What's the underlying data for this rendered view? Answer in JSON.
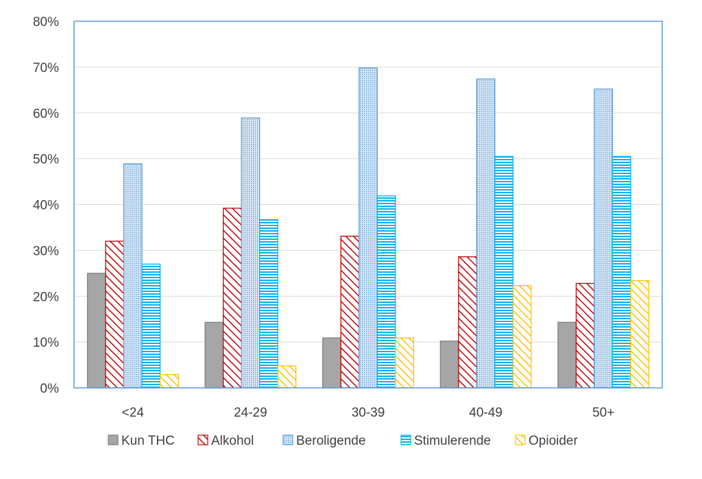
{
  "chart_data": {
    "type": "bar",
    "categories": [
      "<24",
      "24-29",
      "30-39",
      "40-49",
      "50+"
    ],
    "series": [
      {
        "name": "Kun THC",
        "values": [
          25,
          14.3,
          10.9,
          10.2,
          14.3
        ],
        "color": "#a6a6a6",
        "pattern": "solid"
      },
      {
        "name": "Alkohol",
        "values": [
          32,
          39.2,
          33.1,
          28.6,
          22.8
        ],
        "color": "#c00000",
        "pattern": "diagonal-hatch"
      },
      {
        "name": "Beroligende",
        "values": [
          48.9,
          58.9,
          69.8,
          67.4,
          65.2
        ],
        "color": "#5b9bd5",
        "pattern": "dotted"
      },
      {
        "name": "Stimulerende",
        "values": [
          27,
          36.7,
          41.9,
          50.5,
          50.5
        ],
        "color": "#00b0f0",
        "pattern": "horizontal-lines"
      },
      {
        "name": "Opioider",
        "values": [
          2.9,
          4.8,
          10.9,
          22.3,
          23.4
        ],
        "color": "#ffc000",
        "pattern": "diagonal-hatch"
      }
    ],
    "ylim": [
      0,
      80
    ],
    "y_ticks": [
      "0%",
      "10%",
      "20%",
      "30%",
      "40%",
      "50%",
      "60%",
      "70%",
      "80%"
    ],
    "grid": true,
    "legend_position": "bottom",
    "plot_border_color": "#5b9bd5"
  }
}
